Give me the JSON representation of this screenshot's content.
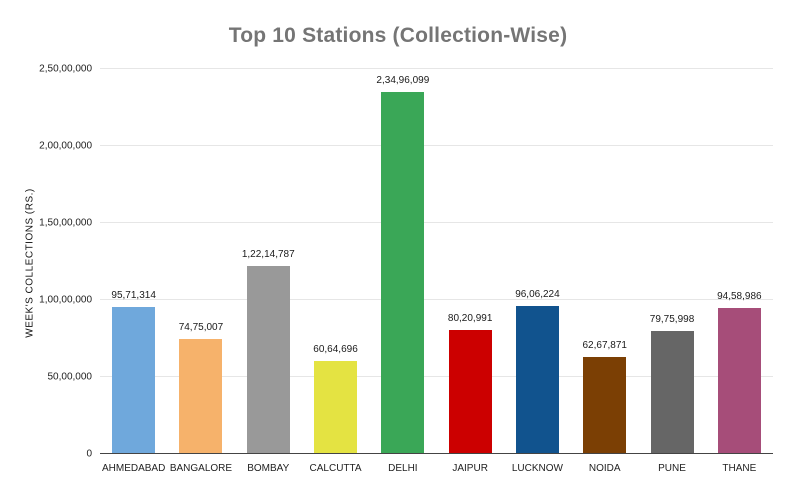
{
  "title": "Top 10 Stations (Collection-Wise)",
  "chart_data": {
    "type": "bar",
    "title": "Top 10 Stations (Collection-Wise)",
    "xlabel": "",
    "ylabel": "WEEK'S COLLECTIONS (RS.)",
    "categories": [
      "AHMEDABAD",
      "BANGALORE",
      "BOMBAY",
      "CALCUTTA",
      "DELHI",
      "JAIPUR",
      "LUCKNOW",
      "NOIDA",
      "PUNE",
      "THANE"
    ],
    "values": [
      9571314,
      7475007,
      12214787,
      6064696,
      23496099,
      8020991,
      9606224,
      6267871,
      7975998,
      9458986
    ],
    "value_labels": [
      "95,71,314",
      "74,75,007",
      "1,22,14,787",
      "60,64,696",
      "2,34,96,099",
      "80,20,991",
      "96,06,224",
      "62,67,871",
      "79,75,998",
      "94,58,986"
    ],
    "bar_colors": [
      "#6FA8DC",
      "#F6B26B",
      "#999999",
      "#E4E342",
      "#3AA757",
      "#CC0000",
      "#11538E",
      "#7B3F04",
      "#666666",
      "#A64D79"
    ],
    "ylim": [
      0,
      25000000
    ],
    "yticks": [
      0,
      5000000,
      10000000,
      15000000,
      20000000,
      25000000
    ],
    "ytick_labels": [
      "0",
      "50,00,000",
      "1,00,00,000",
      "1,50,00,000",
      "2,00,00,000",
      "2,50,00,000"
    ],
    "grid": true,
    "legend": "none"
  },
  "colors": {
    "title": "#757575",
    "gridline": "#e6e6e6",
    "axis_line": "#444444",
    "text": "#222222",
    "background": "#ffffff"
  }
}
